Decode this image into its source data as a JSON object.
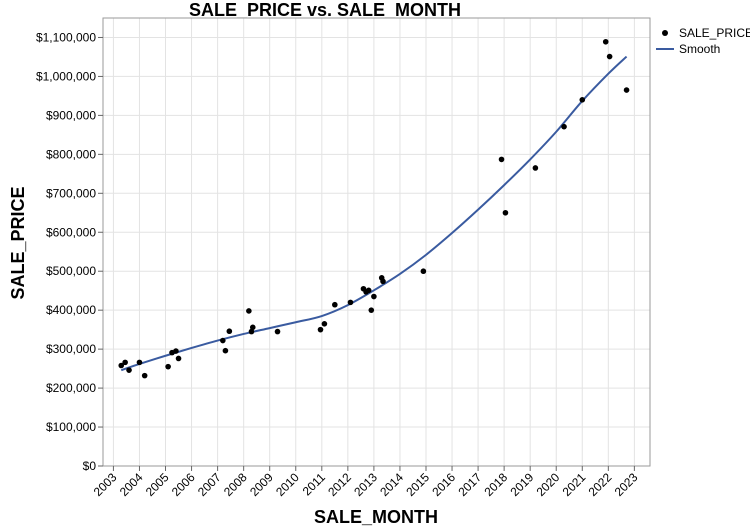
{
  "chart_data": {
    "type": "scatter",
    "title": "SALE_PRICE vs. SALE_MONTH",
    "xlabel": "SALE_MONTH",
    "ylabel": "SALE_PRICE",
    "xlim": [
      2002.6,
      2023.6
    ],
    "ylim": [
      0,
      1150000
    ],
    "x_ticks": [
      2003,
      2004,
      2005,
      2006,
      2007,
      2008,
      2009,
      2010,
      2011,
      2012,
      2013,
      2014,
      2015,
      2016,
      2017,
      2018,
      2019,
      2020,
      2021,
      2022,
      2023
    ],
    "y_ticks": [
      0,
      100000,
      200000,
      300000,
      400000,
      500000,
      600000,
      700000,
      800000,
      900000,
      1000000,
      1100000
    ],
    "y_tick_labels": [
      "$0",
      "$100,000",
      "$200,000",
      "$300,000",
      "$400,000",
      "$500,000",
      "$600,000",
      "$700,000",
      "$800,000",
      "$900,000",
      "$1,000,000",
      "$1,100,000"
    ],
    "grid": true,
    "legend": {
      "position": "right",
      "entries": [
        {
          "label": "SALE_PRICE",
          "kind": "marker",
          "color": "#000000"
        },
        {
          "label": "Smooth",
          "kind": "line",
          "color": "#3A5BA0"
        }
      ]
    },
    "series": [
      {
        "name": "SALE_PRICE",
        "kind": "scatter",
        "color": "#000000",
        "points": [
          [
            2003.3,
            258000
          ],
          [
            2003.45,
            266000
          ],
          [
            2003.6,
            246000
          ],
          [
            2004.0,
            266000
          ],
          [
            2004.2,
            232000
          ],
          [
            2005.1,
            255000
          ],
          [
            2005.25,
            291000
          ],
          [
            2005.4,
            295000
          ],
          [
            2005.5,
            276000
          ],
          [
            2007.2,
            322000
          ],
          [
            2007.3,
            296000
          ],
          [
            2007.45,
            346000
          ],
          [
            2008.2,
            398000
          ],
          [
            2008.3,
            345000
          ],
          [
            2008.35,
            356000
          ],
          [
            2009.3,
            345000
          ],
          [
            2010.95,
            350000
          ],
          [
            2011.1,
            365000
          ],
          [
            2011.5,
            414000
          ],
          [
            2012.1,
            420000
          ],
          [
            2012.6,
            455000
          ],
          [
            2012.7,
            447000
          ],
          [
            2012.8,
            451000
          ],
          [
            2012.9,
            400000
          ],
          [
            2013.0,
            435000
          ],
          [
            2013.3,
            483000
          ],
          [
            2013.35,
            474000
          ],
          [
            2014.9,
            500000
          ],
          [
            2017.9,
            787000
          ],
          [
            2018.05,
            650000
          ],
          [
            2019.2,
            765000
          ],
          [
            2020.3,
            871000
          ],
          [
            2021.0,
            940000
          ],
          [
            2021.9,
            1089000
          ],
          [
            2022.05,
            1051000
          ],
          [
            2022.7,
            965000
          ]
        ]
      },
      {
        "name": "Smooth",
        "kind": "line",
        "color": "#3A5BA0",
        "points": [
          [
            2003.3,
            246000
          ],
          [
            2004.0,
            262000
          ],
          [
            2005.0,
            283000
          ],
          [
            2006.0,
            303000
          ],
          [
            2007.0,
            322000
          ],
          [
            2008.0,
            339000
          ],
          [
            2009.0,
            354000
          ],
          [
            2010.0,
            369000
          ],
          [
            2011.0,
            385000
          ],
          [
            2012.0,
            413000
          ],
          [
            2013.0,
            451000
          ],
          [
            2014.0,
            493000
          ],
          [
            2015.0,
            542000
          ],
          [
            2016.0,
            598000
          ],
          [
            2017.0,
            658000
          ],
          [
            2018.0,
            721000
          ],
          [
            2019.0,
            787000
          ],
          [
            2020.0,
            858000
          ],
          [
            2021.0,
            937000
          ],
          [
            2022.0,
            1007000
          ],
          [
            2022.7,
            1051000
          ]
        ]
      }
    ]
  }
}
